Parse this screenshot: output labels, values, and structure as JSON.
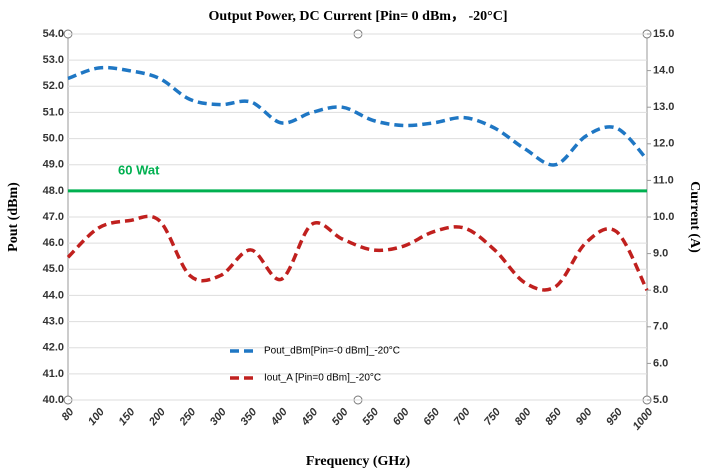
{
  "chart_data": {
    "type": "line",
    "title": "Output Power, DC Current  [Pin= 0 dBm， -20°C]",
    "x_label": "Frequency (GHz)",
    "y_label": "Pout (dBm)",
    "y2_label": "Current (A)",
    "categories": [
      "80",
      "100",
      "150",
      "200",
      "250",
      "300",
      "350",
      "400",
      "450",
      "500",
      "550",
      "600",
      "650",
      "700",
      "750",
      "800",
      "850",
      "900",
      "950",
      "1000"
    ],
    "series": [
      {
        "name": "Pout_dBm[Pin=-0 dBm]_-20°C",
        "color": "#1f77c4",
        "axis": "y",
        "values": [
          52.3,
          52.7,
          52.6,
          52.3,
          51.5,
          51.3,
          51.4,
          50.6,
          51.0,
          51.2,
          50.7,
          50.5,
          50.6,
          50.8,
          50.4,
          49.6,
          49.0,
          50.1,
          50.4,
          49.2
        ]
      },
      {
        "name": "Iout_A [Pin=0 dBm]_-20°C",
        "color": "#c0201e",
        "axis": "y2",
        "values": [
          8.9,
          9.7,
          9.9,
          9.9,
          8.4,
          8.4,
          9.1,
          8.3,
          9.8,
          9.4,
          9.1,
          9.2,
          9.6,
          9.7,
          9.1,
          8.2,
          8.1,
          9.3,
          9.6,
          8.0
        ]
      }
    ],
    "reference_line": {
      "value": 48,
      "label": "60 Wat",
      "color": "#00b050"
    },
    "ylim": [
      40,
      54
    ],
    "yticks": [
      {
        "value": 40,
        "label": "40.0"
      },
      {
        "value": 41,
        "label": "41.0"
      },
      {
        "value": 42,
        "label": "42.0"
      },
      {
        "value": 43,
        "label": "43.0"
      },
      {
        "value": 44,
        "label": "44.0"
      },
      {
        "value": 45,
        "label": "45.0"
      },
      {
        "value": 46,
        "label": "46.0"
      },
      {
        "value": 47,
        "label": "47.0"
      },
      {
        "value": 48,
        "label": "48.0"
      },
      {
        "value": 49,
        "label": "49.0"
      },
      {
        "value": 50,
        "label": "50.0"
      },
      {
        "value": 51,
        "label": "51.0"
      },
      {
        "value": 52,
        "label": "52.0"
      },
      {
        "value": 53,
        "label": "53.0"
      },
      {
        "value": 54,
        "label": "54.0"
      }
    ],
    "y2lim": [
      5,
      15
    ],
    "y2ticks": [
      {
        "value": 5,
        "label": "5.0"
      },
      {
        "value": 6,
        "label": "6.0"
      },
      {
        "value": 7,
        "label": "7.0"
      },
      {
        "value": 8,
        "label": "8.0"
      },
      {
        "value": 9,
        "label": "9.0"
      },
      {
        "value": 10,
        "label": "10.0"
      },
      {
        "value": 11,
        "label": "11.0"
      },
      {
        "value": 12,
        "label": "12.0"
      },
      {
        "value": 13,
        "label": "13.0"
      },
      {
        "value": 14,
        "label": "14.0"
      },
      {
        "value": 15,
        "label": "15.0"
      }
    ],
    "grid": true
  }
}
